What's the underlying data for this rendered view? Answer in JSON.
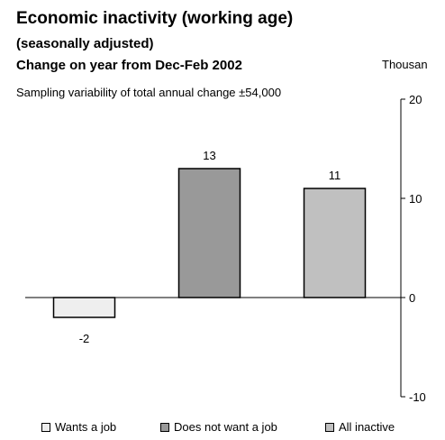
{
  "chart_data": {
    "type": "bar",
    "title": "Economic inactivity (working age)",
    "subtitle": "(seasonally adjusted)",
    "subtitle2": "Change on year from Dec-Feb 2002",
    "note": "Sampling variability of total annual change  ±54,000",
    "ylabel": "Thousan",
    "categories": [
      "Wants a job",
      "Does not want a job",
      "All inactive"
    ],
    "values": [
      -2,
      13,
      11
    ],
    "data_labels": [
      "-2",
      "13",
      "11"
    ],
    "colors": [
      "#eeeeee",
      "#999999",
      "#c0c0c0"
    ],
    "ylim": [
      -10,
      20
    ],
    "yticks": [
      20,
      10,
      0,
      -10
    ],
    "ytick_labels": [
      "20",
      "10",
      "0",
      "-10"
    ],
    "y_axis_side": "right",
    "grid": false,
    "legend": "bottom"
  }
}
